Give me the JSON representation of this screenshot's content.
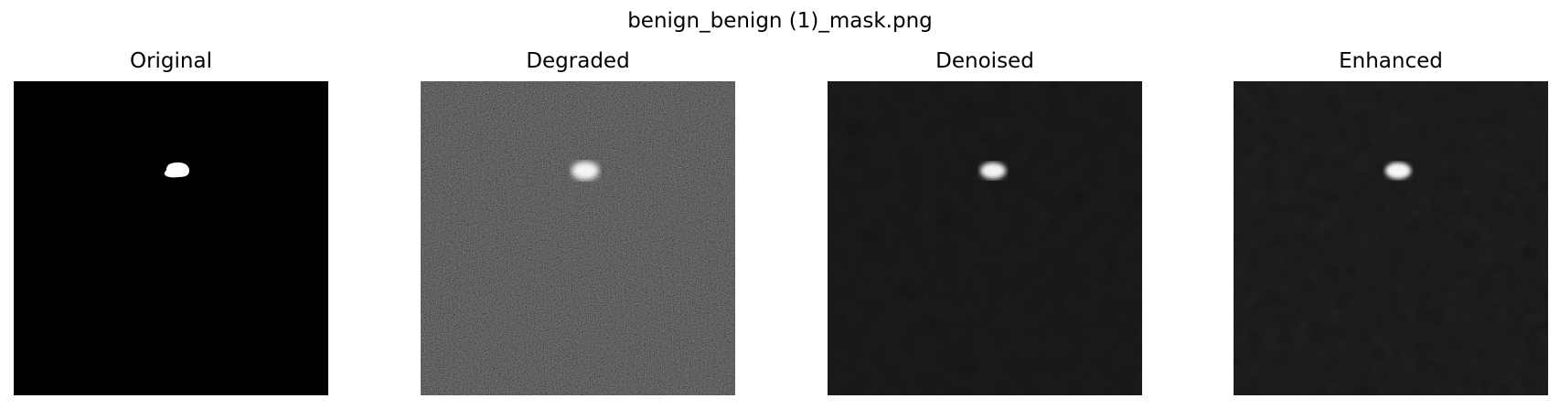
{
  "figure": {
    "title": "benign_benign (1)_mask.png"
  },
  "panels": [
    {
      "title": "Original"
    },
    {
      "title": "Degraded"
    },
    {
      "title": "Denoised"
    },
    {
      "title": "Enhanced"
    }
  ],
  "colors": {
    "background": "#ffffff",
    "image_background": "#000000",
    "mask_blob": "#ffffff"
  }
}
